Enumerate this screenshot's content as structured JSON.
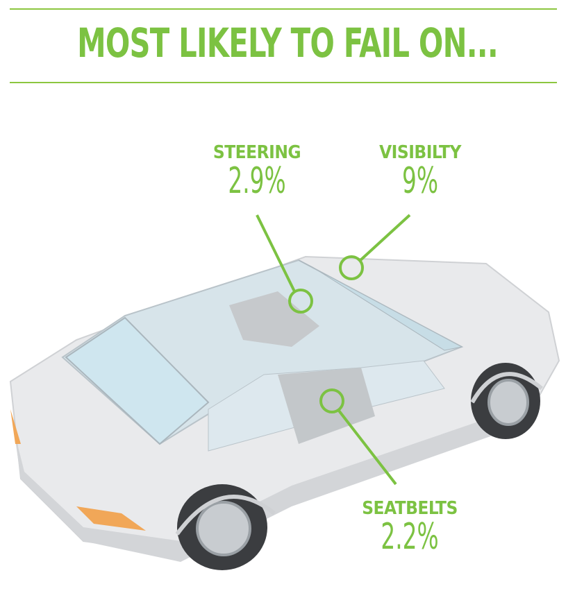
{
  "title": "MOST LIKELY TO FAIL ON...",
  "accent_color": "#7cc242",
  "callouts": [
    {
      "name": "STEERING",
      "value": "2.9%"
    },
    {
      "name": "VISIBILTY",
      "value": "9%"
    },
    {
      "name": "SEATBELTS",
      "value": "2.2%"
    }
  ],
  "illustration": "car-icon"
}
